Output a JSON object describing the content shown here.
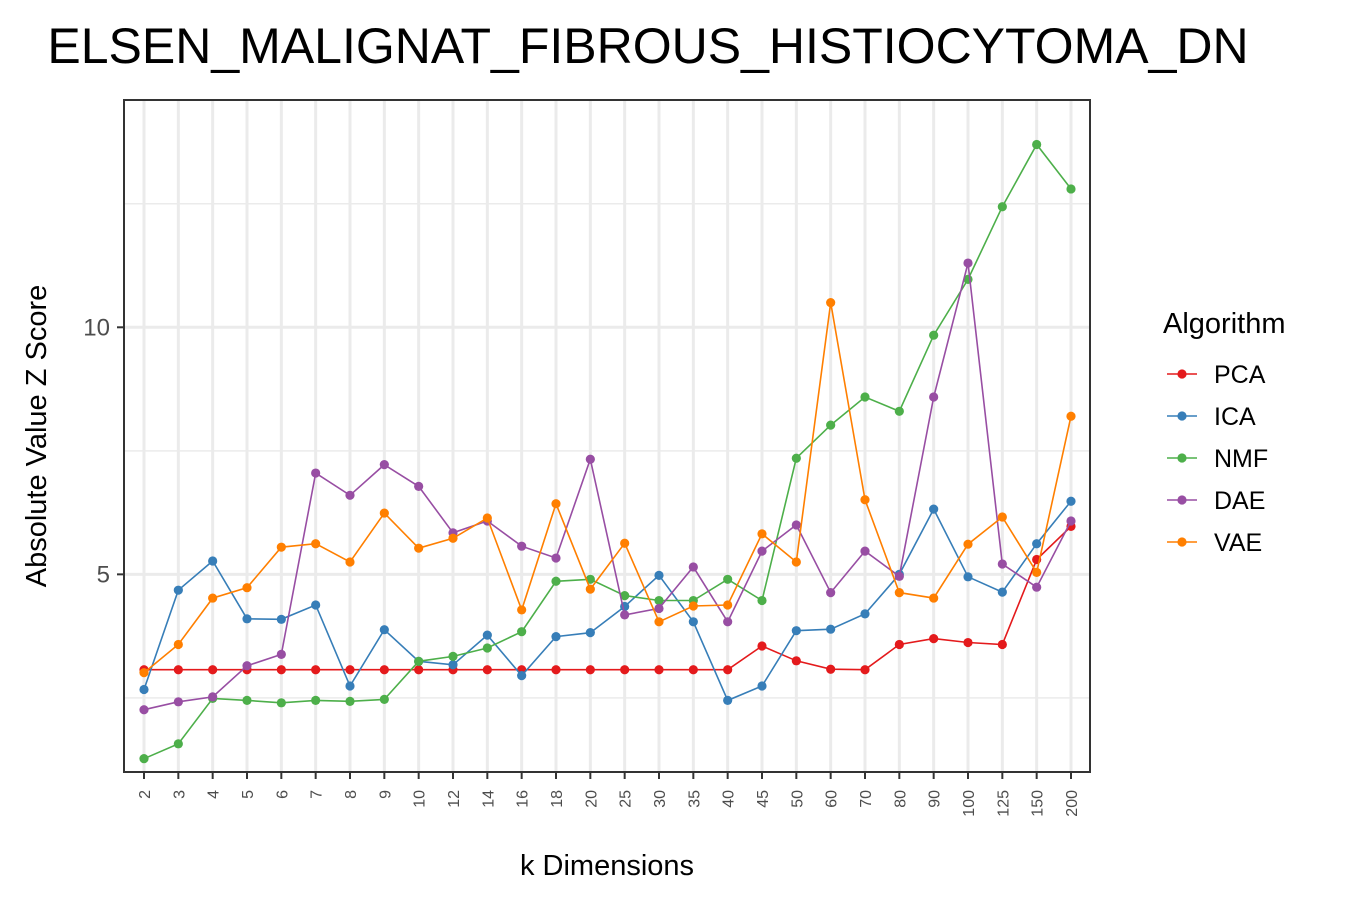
{
  "chart_data": {
    "type": "line",
    "title": "ELSEN_MALIGNAT_FIBROUS_HISTIOCYTOMA_DN",
    "xlabel": "k Dimensions",
    "ylabel": "Absolute Value Z Score",
    "categories": [
      "2",
      "3",
      "4",
      "5",
      "6",
      "7",
      "8",
      "9",
      "10",
      "12",
      "14",
      "16",
      "18",
      "20",
      "25",
      "30",
      "35",
      "40",
      "45",
      "50",
      "60",
      "70",
      "80",
      "90",
      "100",
      "125",
      "150",
      "200"
    ],
    "y_ticks": [
      5,
      10
    ],
    "ylim": [
      1.0,
      14.6
    ],
    "grid": true,
    "legend_title": "Algorithm",
    "legend_position": "right",
    "series": [
      {
        "name": "PCA",
        "color": "#e41a1c",
        "values": [
          3.07,
          3.07,
          3.07,
          3.07,
          3.07,
          3.07,
          3.07,
          3.07,
          3.07,
          3.07,
          3.07,
          3.07,
          3.07,
          3.07,
          3.07,
          3.07,
          3.07,
          3.07,
          3.55,
          3.25,
          3.08,
          3.07,
          3.58,
          3.7,
          3.62,
          3.58,
          5.3,
          5.97
        ]
      },
      {
        "name": "ICA",
        "color": "#377eb8",
        "values": [
          2.67,
          4.68,
          5.27,
          4.1,
          4.09,
          4.38,
          2.74,
          3.88,
          3.24,
          3.17,
          3.77,
          2.95,
          3.74,
          3.82,
          4.35,
          4.98,
          4.04,
          2.45,
          2.74,
          3.86,
          3.89,
          4.2,
          5.0,
          6.32,
          4.95,
          4.64,
          5.62,
          6.48
        ]
      },
      {
        "name": "NMF",
        "color": "#4daf4a",
        "values": [
          1.27,
          1.57,
          2.49,
          2.45,
          2.4,
          2.45,
          2.43,
          2.47,
          3.24,
          3.34,
          3.51,
          3.84,
          4.86,
          4.9,
          4.57,
          4.47,
          4.47,
          4.9,
          4.47,
          7.35,
          8.02,
          8.59,
          8.3,
          9.84,
          10.97,
          12.44,
          13.7,
          12.8
        ]
      },
      {
        "name": "DAE",
        "color": "#984ea3",
        "values": [
          2.26,
          2.42,
          2.52,
          3.15,
          3.38,
          7.05,
          6.6,
          7.22,
          6.78,
          5.84,
          6.08,
          5.57,
          5.33,
          7.33,
          4.18,
          4.31,
          5.15,
          4.04,
          5.47,
          6.0,
          4.63,
          5.47,
          4.96,
          8.59,
          11.3,
          5.21,
          4.74,
          6.08
        ]
      },
      {
        "name": "VAE",
        "color": "#ff7f00",
        "values": [
          3.01,
          3.58,
          4.52,
          4.73,
          5.55,
          5.62,
          5.25,
          6.24,
          5.53,
          5.73,
          6.14,
          4.28,
          6.43,
          4.7,
          5.63,
          4.04,
          4.36,
          4.38,
          5.82,
          5.25,
          10.5,
          6.51,
          4.63,
          4.52,
          5.61,
          6.16,
          5.04,
          8.2
        ]
      }
    ]
  }
}
